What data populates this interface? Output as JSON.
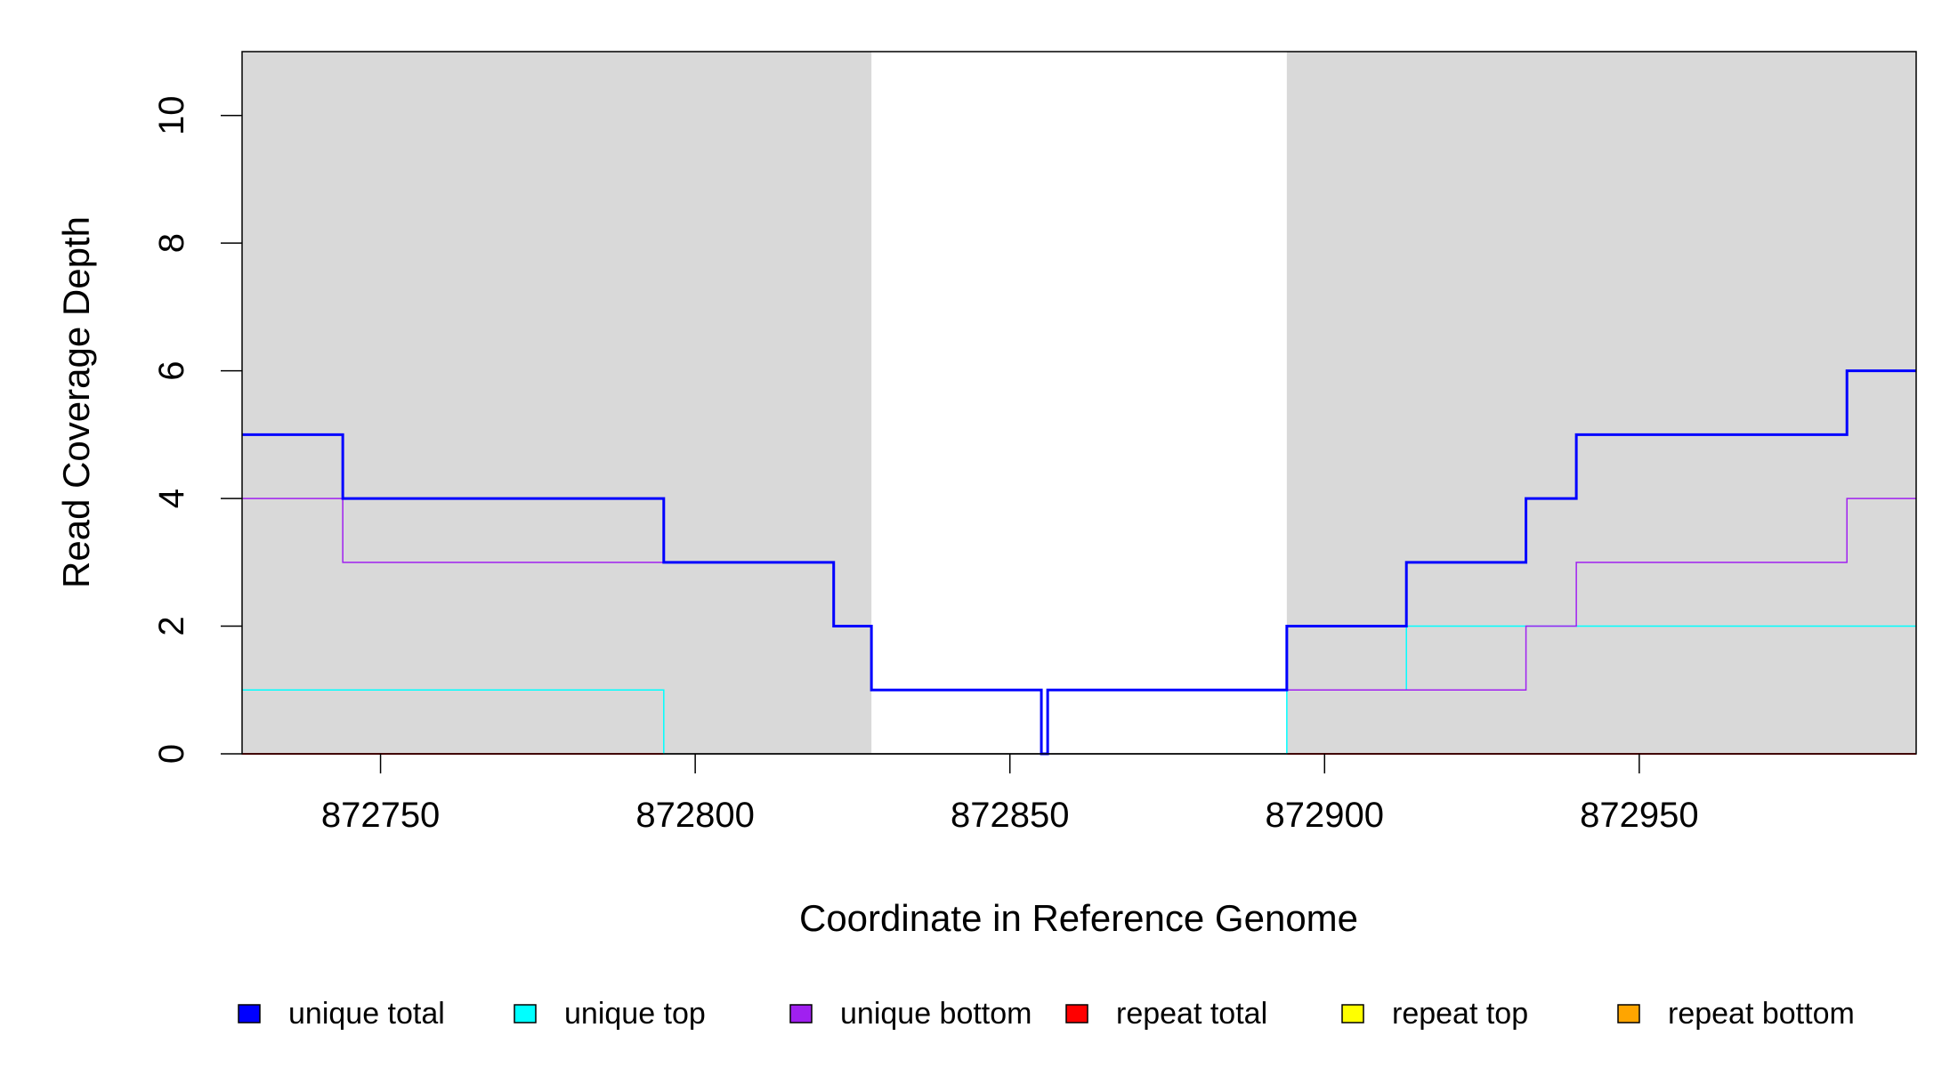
{
  "chart_data": {
    "type": "line",
    "step": true,
    "xlabel": "Coordinate in Reference Genome",
    "ylabel": "Read Coverage Depth",
    "xlim": [
      872728,
      872994
    ],
    "ylim": [
      0,
      11
    ],
    "xticks": [
      872750,
      872800,
      872850,
      872900,
      872950
    ],
    "xtick_labels": [
      "872750",
      "872800",
      "872850",
      "872900",
      "872950"
    ],
    "yticks": [
      0,
      2,
      4,
      6,
      8,
      10
    ],
    "ytick_labels": [
      "0",
      "2",
      "4",
      "6",
      "8",
      "10"
    ],
    "shaded_regions": [
      {
        "x0": 872728,
        "x1": 872828,
        "color": "#d9d9d9"
      },
      {
        "x0": 872894,
        "x1": 872994,
        "color": "#d9d9d9"
      }
    ],
    "legend_position": "bottom",
    "series": [
      {
        "name": "unique total",
        "color": "#0000ff",
        "steps": [
          [
            872728,
            5
          ],
          [
            872744,
            4
          ],
          [
            872795,
            3
          ],
          [
            872822,
            2
          ],
          [
            872828,
            1
          ],
          [
            872855,
            0
          ],
          [
            872856,
            1
          ],
          [
            872894,
            2
          ],
          [
            872913,
            3
          ],
          [
            872932,
            4
          ],
          [
            872940,
            5
          ],
          [
            872983,
            6
          ],
          [
            872994,
            6
          ]
        ]
      },
      {
        "name": "unique top",
        "color": "#00ffff",
        "steps": [
          [
            872728,
            1
          ],
          [
            872795,
            0
          ],
          [
            872894,
            1
          ],
          [
            872913,
            2
          ],
          [
            872994,
            2
          ]
        ]
      },
      {
        "name": "unique bottom",
        "color": "#a020f0",
        "steps": [
          [
            872728,
            4
          ],
          [
            872744,
            3
          ],
          [
            872822,
            2
          ],
          [
            872828,
            1
          ],
          [
            872855,
            0
          ],
          [
            872856,
            1
          ],
          [
            872932,
            2
          ],
          [
            872940,
            3
          ],
          [
            872983,
            4
          ],
          [
            872994,
            4
          ]
        ]
      },
      {
        "name": "repeat total",
        "color": "#ff0000",
        "steps": [
          [
            872728,
            0
          ],
          [
            872994,
            0
          ]
        ]
      },
      {
        "name": "repeat top",
        "color": "#ffff00",
        "steps": [
          [
            872728,
            0
          ],
          [
            872994,
            0
          ]
        ]
      },
      {
        "name": "repeat bottom",
        "color": "#ffa500",
        "steps": [
          [
            872728,
            0
          ],
          [
            872994,
            0
          ]
        ]
      }
    ]
  }
}
